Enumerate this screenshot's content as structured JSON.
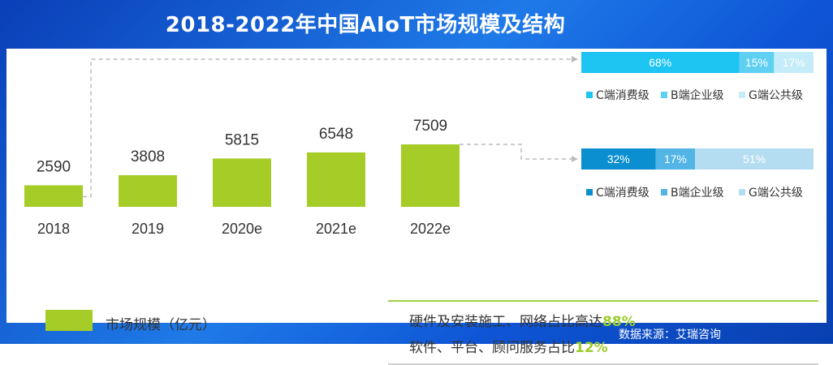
{
  "title": "2018-2022年中国AIoT市场规模及结构",
  "source": "数据来源：艾瑞咨询",
  "chart_data": [
    {
      "type": "bar",
      "categories": [
        "2018",
        "2019",
        "2020e",
        "2021e",
        "2022e"
      ],
      "values": [
        2590,
        3808,
        5815,
        6548,
        7509
      ],
      "legend": "市场规模（亿元）",
      "color": "#a6cc28"
    },
    {
      "type": "bar",
      "stacked": true,
      "orientation": "horizontal",
      "year": "2018",
      "segments": [
        {
          "name": "C端消费级",
          "value": 32,
          "label": "32%",
          "color": "#0b8fd0"
        },
        {
          "name": "B端企业级",
          "value": 17,
          "label": "17%",
          "color": "#52b5e6"
        },
        {
          "name": "G端公共级",
          "value": 51,
          "label": "51%",
          "color": "#b5ddf2"
        }
      ]
    },
    {
      "type": "bar",
      "stacked": true,
      "orientation": "horizontal",
      "year": "2022e",
      "segments": [
        {
          "name": "C端消费级",
          "value": 68,
          "label": "68%",
          "color": "#1ec4f2"
        },
        {
          "name": "B端企业级",
          "value": 15,
          "label": "15%",
          "color": "#5fd0f2"
        },
        {
          "name": "G端公共级",
          "value": 17,
          "label": "17%",
          "color": "#c4ecf9"
        }
      ]
    }
  ],
  "notes": [
    {
      "text": "硬件及安装施工、网络占比高达",
      "highlight": "88%"
    },
    {
      "text": "软件、平台、顾问服务占比",
      "highlight": "12%"
    }
  ]
}
